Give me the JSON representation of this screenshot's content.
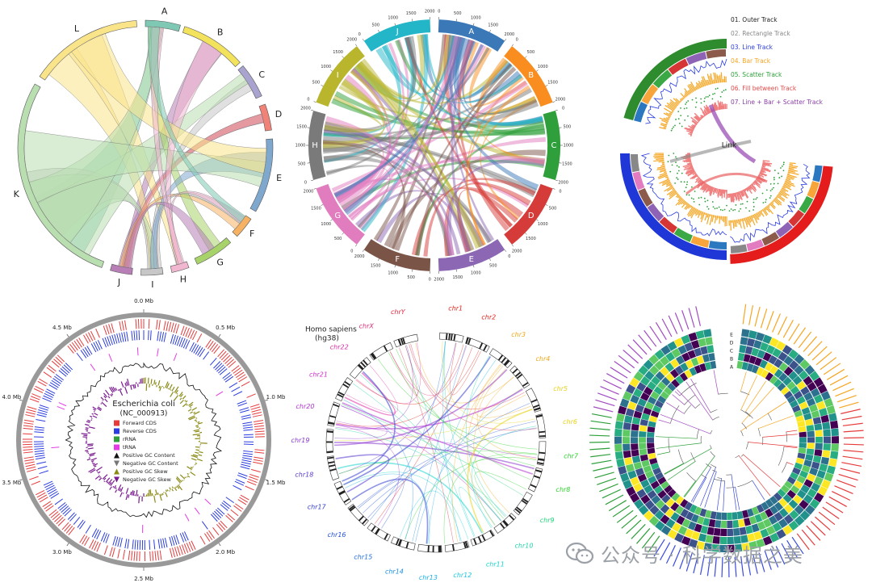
{
  "panels": {
    "p1": {
      "sectors": [
        {
          "label": "A",
          "color": "#7ec8b4"
        },
        {
          "label": "B",
          "color": "#f3e25c"
        },
        {
          "label": "C",
          "color": "#a9a3cf"
        },
        {
          "label": "D",
          "color": "#f08277"
        },
        {
          "label": "E",
          "color": "#7fa8cf"
        },
        {
          "label": "F",
          "color": "#f7b163"
        },
        {
          "label": "G",
          "color": "#a7d36a"
        },
        {
          "label": "H",
          "color": "#f1b6d0"
        },
        {
          "label": "I",
          "color": "#c7c7c7"
        },
        {
          "label": "J",
          "color": "#b77fb6"
        },
        {
          "label": "K",
          "color": "#b9deb0"
        },
        {
          "label": "L",
          "color": "#f9e48a"
        }
      ]
    },
    "p2": {
      "sectors": [
        {
          "label": "A",
          "color": "#3b78b7"
        },
        {
          "label": "B",
          "color": "#f98d1f"
        },
        {
          "label": "C",
          "color": "#2e9f3a"
        },
        {
          "label": "D",
          "color": "#d53b38"
        },
        {
          "label": "E",
          "color": "#8c67b3"
        },
        {
          "label": "F",
          "color": "#7b5448"
        },
        {
          "label": "G",
          "color": "#e17cbf"
        },
        {
          "label": "H",
          "color": "#7a7a7a"
        },
        {
          "label": "I",
          "color": "#b9b62e"
        },
        {
          "label": "J",
          "color": "#22b6c8"
        }
      ],
      "ticks": [
        "0",
        "500",
        "1000",
        "1500",
        "2000"
      ]
    },
    "p3": {
      "legend": [
        {
          "text": "01. Outer Track",
          "color": "#222222"
        },
        {
          "text": "02. Rectangle Track",
          "color": "#888888"
        },
        {
          "text": "03. Line Track",
          "color": "#2b3de0"
        },
        {
          "text": "04. Bar Track",
          "color": "#f5a623"
        },
        {
          "text": "05. Scatter Track",
          "color": "#2e9f3a"
        },
        {
          "text": "06. Fill between Track",
          "color": "#e04b4b"
        },
        {
          "text": "07. Line + Bar + Scatter Track",
          "color": "#8a3ea6"
        }
      ],
      "link_label": "Link",
      "outer_colors": [
        "#2e8b2e",
        "#1f37d6",
        "#e51c1c"
      ]
    },
    "p4": {
      "title": "Escherichia coli",
      "subtitle": "(NC_000913)",
      "ticks": [
        "0.0 Mb",
        "0.5 Mb",
        "1.0 Mb",
        "1.5 Mb",
        "2.0 Mb",
        "2.5 Mb",
        "3.0 Mb",
        "3.5 Mb",
        "4.0 Mb",
        "4.5 Mb"
      ],
      "legend": [
        {
          "text": "Forward CDS",
          "color": "#e63b3b",
          "shape": "square"
        },
        {
          "text": "Reverse CDS",
          "color": "#2b3de0",
          "shape": "square"
        },
        {
          "text": "rRNA",
          "color": "#2e9f3a",
          "shape": "square"
        },
        {
          "text": "tRNA",
          "color": "#e53be5",
          "shape": "square"
        },
        {
          "text": "Positive GC Content",
          "color": "#111111",
          "shape": "up"
        },
        {
          "text": "Negative GC Content",
          "color": "#777777",
          "shape": "down"
        },
        {
          "text": "Positive GC Skew",
          "color": "#8a8a16",
          "shape": "up"
        },
        {
          "text": "Negative GC Skew",
          "color": "#7a1a8f",
          "shape": "down"
        }
      ]
    },
    "p5": {
      "title": "Homo sapiens",
      "subtitle": "(hg38)",
      "chromosomes": [
        {
          "label": "chr1",
          "color": "#e3261d"
        },
        {
          "label": "chr2",
          "color": "#e3261d"
        },
        {
          "label": "chr3",
          "color": "#f0a81a"
        },
        {
          "label": "chr4",
          "color": "#f0a81a"
        },
        {
          "label": "chr5",
          "color": "#e8d21a"
        },
        {
          "label": "chr6",
          "color": "#e8d21a"
        },
        {
          "label": "chr7",
          "color": "#2ed12e"
        },
        {
          "label": "chr8",
          "color": "#2ed12e"
        },
        {
          "label": "chr9",
          "color": "#21d67a"
        },
        {
          "label": "chr10",
          "color": "#21d6a8"
        },
        {
          "label": "chr11",
          "color": "#1ad6cc"
        },
        {
          "label": "chr12",
          "color": "#1ac8e0"
        },
        {
          "label": "chr13",
          "color": "#1ab0e8"
        },
        {
          "label": "chr14",
          "color": "#1a90e8"
        },
        {
          "label": "chr15",
          "color": "#1f6ee0"
        },
        {
          "label": "chr16",
          "color": "#2050d8"
        },
        {
          "label": "chr17",
          "color": "#3540d0"
        },
        {
          "label": "chr18",
          "color": "#5a3ad0"
        },
        {
          "label": "chr19",
          "color": "#8a36d0"
        },
        {
          "label": "chr20",
          "color": "#b030d0"
        },
        {
          "label": "chr21",
          "color": "#d02ec8"
        },
        {
          "label": "chr22",
          "color": "#e02ea8"
        },
        {
          "label": "chrX",
          "color": "#e02e7a"
        },
        {
          "label": "chrY",
          "color": "#e0263e"
        }
      ]
    },
    "p6": {
      "ring_labels": [
        "E",
        "D",
        "C",
        "B",
        "A"
      ],
      "clade_colors": [
        "#f5a623",
        "#e63b3b",
        "#3b4be0",
        "#2e9f3a",
        "#a04bc0",
        "#444444"
      ]
    }
  },
  "watermark": "公众号 · 科学数据之美"
}
